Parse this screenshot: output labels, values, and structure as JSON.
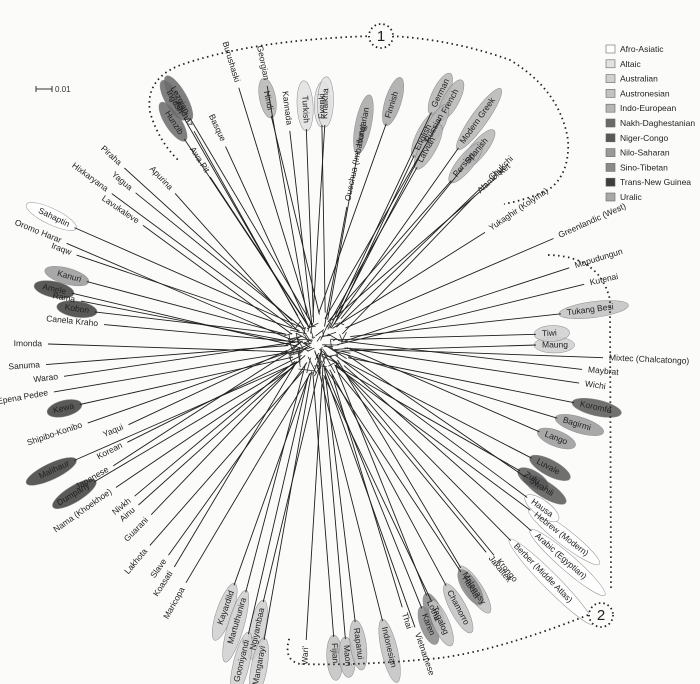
{
  "scale_label": "0.01",
  "group_markers": [
    "1",
    "2"
  ],
  "legend": [
    {
      "name": "Afro-Asiatic",
      "color": "#ffffff"
    },
    {
      "name": "Altaic",
      "color": "#e2e2e2"
    },
    {
      "name": "Australian",
      "color": "#d0d0d0"
    },
    {
      "name": "Austronesian",
      "color": "#c2c2c2"
    },
    {
      "name": "Indo-European",
      "color": "#b6b6b6"
    },
    {
      "name": "Nakh-Daghestanian",
      "color": "#6a6a6a"
    },
    {
      "name": "Niger-Congo",
      "color": "#585858"
    },
    {
      "name": "Nilo-Saharan",
      "color": "#9a9a9a"
    },
    {
      "name": "Sino-Tibetan",
      "color": "#8a8a8a"
    },
    {
      "name": "Trans-New Guinea",
      "color": "#3e3e3e"
    },
    {
      "name": "Uralic",
      "color": "#a8a8a8"
    }
  ],
  "languages": [
    {
      "name": "Abkhaz",
      "family": ""
    },
    {
      "name": "Lezgian",
      "family": "Nakh-Daghestanian"
    },
    {
      "name": "Ingush",
      "family": "Nakh-Daghestanian"
    },
    {
      "name": "Hunzib",
      "family": "Nakh-Daghestanian"
    },
    {
      "name": "Burushaski",
      "family": ""
    },
    {
      "name": "Georgian",
      "family": ""
    },
    {
      "name": "Hindi",
      "family": "Indo-European"
    },
    {
      "name": "Kannada",
      "family": ""
    },
    {
      "name": "Turkish",
      "family": "Altaic"
    },
    {
      "name": "Evenki",
      "family": "Altaic"
    },
    {
      "name": "Khalkha",
      "family": "Altaic"
    },
    {
      "name": "Ouechua (Imbabura)",
      "family": ""
    },
    {
      "name": "Hungarian",
      "family": "Uralic"
    },
    {
      "name": "Finnish",
      "family": "Uralic"
    },
    {
      "name": "English",
      "family": "Indo-European"
    },
    {
      "name": "German",
      "family": "Indo-European"
    },
    {
      "name": "French",
      "family": "Indo-European"
    },
    {
      "name": "Russian",
      "family": "Indo-European"
    },
    {
      "name": "Latvian",
      "family": "Indo-European"
    },
    {
      "name": "Modern Greek",
      "family": "Indo-European"
    },
    {
      "name": "Spanish",
      "family": "Indo-European"
    },
    {
      "name": "Persian",
      "family": "Indo-European"
    },
    {
      "name": "Basque",
      "family": ""
    },
    {
      "name": "Awa Pit",
      "family": ""
    },
    {
      "name": "Piraha",
      "family": ""
    },
    {
      "name": "Yagua",
      "family": ""
    },
    {
      "name": "Apurina",
      "family": ""
    },
    {
      "name": "Hixkaryana",
      "family": ""
    },
    {
      "name": "Sahaptin",
      "family": "Afro-Asiatic"
    },
    {
      "name": "Lavukaleve",
      "family": ""
    },
    {
      "name": "Oromo Harar",
      "family": ""
    },
    {
      "name": "Iraqw",
      "family": ""
    },
    {
      "name": "Kanuri",
      "family": "Nilo-Saharan"
    },
    {
      "name": "Amele",
      "family": "Trans-New Guinea"
    },
    {
      "name": "Rama",
      "family": ""
    },
    {
      "name": "Kobon",
      "family": "Trans-New Guinea"
    },
    {
      "name": "Canela Kraho",
      "family": ""
    },
    {
      "name": "Imonda",
      "family": ""
    },
    {
      "name": "Sanuma",
      "family": ""
    },
    {
      "name": "Warao",
      "family": ""
    },
    {
      "name": "Epena Pedee",
      "family": ""
    },
    {
      "name": "Kewa",
      "family": "Trans-New Guinea"
    },
    {
      "name": "Shipibo-Konibo",
      "family": ""
    },
    {
      "name": "Yaqui",
      "family": ""
    },
    {
      "name": "Malihaur",
      "family": "Trans-New Guinea"
    },
    {
      "name": "Dumpany",
      "family": "Trans-New Guinea"
    },
    {
      "name": "Japanese",
      "family": ""
    },
    {
      "name": "Korean",
      "family": ""
    },
    {
      "name": "Nama (Khoekhoe)",
      "family": ""
    },
    {
      "name": "Nivkh",
      "family": ""
    },
    {
      "name": "Ainu",
      "family": ""
    },
    {
      "name": "Guarani",
      "family": ""
    },
    {
      "name": "Lakhota",
      "family": ""
    },
    {
      "name": "Slave",
      "family": ""
    },
    {
      "name": "Koasati",
      "family": ""
    },
    {
      "name": "Maricopa",
      "family": ""
    },
    {
      "name": "Kayardild",
      "family": "Australian"
    },
    {
      "name": "Martuthunira",
      "family": "Australian"
    },
    {
      "name": "Ngiyambaa",
      "family": "Australian"
    },
    {
      "name": "Gooniyandi",
      "family": "Australian"
    },
    {
      "name": "Mangarayi",
      "family": "Australian"
    },
    {
      "name": "Wari'",
      "family": ""
    },
    {
      "name": "Fijian",
      "family": "Austronesian"
    },
    {
      "name": "Maori",
      "family": "Austronesian"
    },
    {
      "name": "Rapanui",
      "family": "Austronesian"
    },
    {
      "name": "Indonesian",
      "family": "Austronesian"
    },
    {
      "name": "Thai",
      "family": ""
    },
    {
      "name": "Vietnamese",
      "family": ""
    },
    {
      "name": "Karen",
      "family": "Sino-Tibetan"
    },
    {
      "name": "Lotha",
      "family": "Sino-Tibetan"
    },
    {
      "name": "Tagalog",
      "family": "Austronesian"
    },
    {
      "name": "Chamorro",
      "family": "Austronesian"
    },
    {
      "name": "Malagasy",
      "family": "Austronesian"
    },
    {
      "name": "Hakha",
      "family": "Sino-Tibetan"
    },
    {
      "name": "Jakaltek",
      "family": ""
    },
    {
      "name": "Krongo",
      "family": ""
    },
    {
      "name": "Berber (Middle Atlas)",
      "family": "Afro-Asiatic"
    },
    {
      "name": "Arabic (Egyptian)",
      "family": "Afro-Asiatic"
    },
    {
      "name": "Hebrew (Modern)",
      "family": "Afro-Asiatic"
    },
    {
      "name": "Hausa",
      "family": "Afro-Asiatic"
    },
    {
      "name": "Swahili",
      "family": "Niger-Congo"
    },
    {
      "name": "Zulu",
      "family": "Niger-Congo"
    },
    {
      "name": "Luvale",
      "family": "Niger-Congo"
    },
    {
      "name": "Lango",
      "family": "Nilo-Saharan"
    },
    {
      "name": "Bagirmi",
      "family": "Nilo-Saharan"
    },
    {
      "name": "Koromfe",
      "family": "Niger-Congo"
    },
    {
      "name": "Wichi",
      "family": ""
    },
    {
      "name": "Maybrat",
      "family": ""
    },
    {
      "name": "Mixtec (Chalcatongo)",
      "family": ""
    },
    {
      "name": "Maung",
      "family": "Australian"
    },
    {
      "name": "Tiwi",
      "family": "Australian"
    },
    {
      "name": "Tukang Besi",
      "family": "Austronesian"
    },
    {
      "name": "Kutenai",
      "family": ""
    },
    {
      "name": "Mapudungun",
      "family": ""
    },
    {
      "name": "Greenlandic (West)",
      "family": ""
    },
    {
      "name": "Yukaghir (Kolyma)",
      "family": ""
    },
    {
      "name": "Alamblak",
      "family": ""
    },
    {
      "name": "Chukchi",
      "family": ""
    },
    {
      "name": "Ket",
      "family": ""
    }
  ]
}
